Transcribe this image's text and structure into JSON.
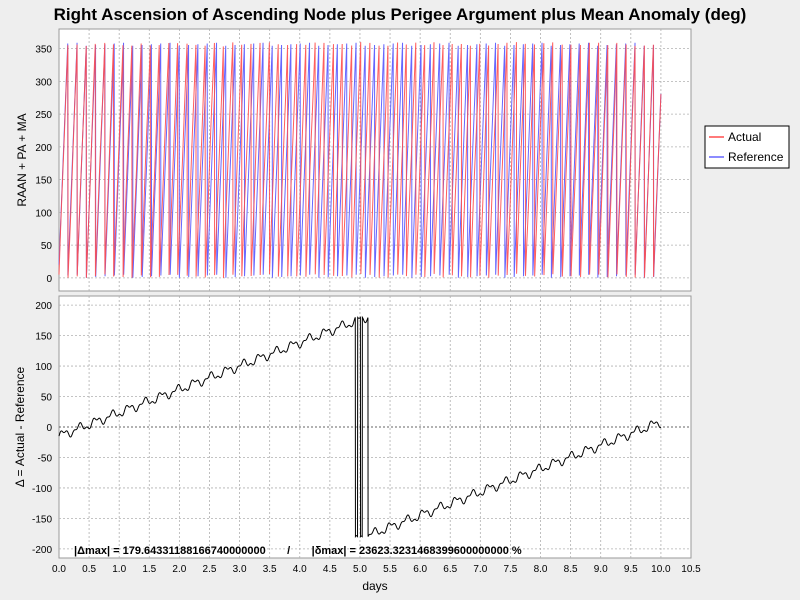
{
  "title": "Right Ascension of Ascending Node plus Perigee Argument plus Mean Anomaly (deg)",
  "xlabel": "days",
  "colors": {
    "actual": "#ff4d4d",
    "reference": "#6666ff",
    "delta": "#000000",
    "grid": "#b0b0b0",
    "plot_bg": "#ffffff"
  },
  "chart_data": [
    {
      "type": "line",
      "title": "Right Ascension of Ascending Node plus Perigee Argument plus Mean Anomaly (deg)",
      "xlabel": "days",
      "ylabel": "RAAN + PA + MA",
      "xlim": [
        0,
        10.5
      ],
      "ylim": [
        -20,
        380
      ],
      "xticks": [
        "0.0",
        "0.5",
        "1.0",
        "1.5",
        "2.0",
        "2.5",
        "3.0",
        "3.5",
        "4.0",
        "4.5",
        "5.0",
        "5.5",
        "6.0",
        "6.5",
        "7.0",
        "7.5",
        "8.0",
        "8.5",
        "9.0",
        "9.5",
        "10.0",
        "10.5"
      ],
      "yticks": [
        "0",
        "50",
        "100",
        "150",
        "200",
        "250",
        "300",
        "350"
      ],
      "grid": true,
      "legend_position": "right",
      "series": [
        {
          "name": "Actual",
          "color": "#ff4d4d",
          "pattern": "sawtooth 0-360 deg, ~6.6 cycles/day",
          "x": [
            0,
            10
          ],
          "period_days": 0.152,
          "y_min": 0,
          "y_max": 360
        },
        {
          "name": "Reference",
          "color": "#6666ff",
          "pattern": "sawtooth 0-360 deg, ~6.5 cycles/day",
          "x": [
            0,
            10
          ],
          "period_days": 0.1545,
          "y_min": 0,
          "y_max": 360
        }
      ]
    },
    {
      "type": "line",
      "xlabel": "days",
      "ylabel": "Δ = Actual - Reference",
      "xlim": [
        0,
        10.5
      ],
      "ylim": [
        -215,
        215
      ],
      "xticks": [
        "0.0",
        "0.5",
        "1.0",
        "1.5",
        "2.0",
        "2.5",
        "3.0",
        "3.5",
        "4.0",
        "4.5",
        "5.0",
        "5.5",
        "6.0",
        "6.5",
        "7.0",
        "7.5",
        "8.0",
        "8.5",
        "9.0",
        "9.5",
        "10.0",
        "10.5"
      ],
      "yticks": [
        "200",
        "150",
        "100",
        "50",
        "0",
        "-50",
        "-100",
        "-150",
        "-200"
      ],
      "grid": true,
      "series": [
        {
          "color": "#000000",
          "pattern": "wrapped difference, range -180 to 180",
          "x": [
            0,
            10
          ],
          "y_min": -180,
          "y_max": 180
        }
      ],
      "annotation": "|Δmax| = 179.64331188166740000000       /       |δmax| = 23623.3231468399600000000 %"
    }
  ]
}
